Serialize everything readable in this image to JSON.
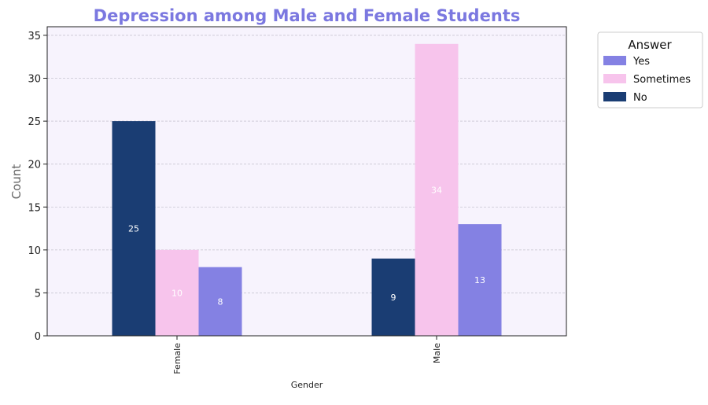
{
  "chart_data": {
    "type": "bar",
    "title": "Depression among Male and Female Students",
    "xlabel": "Gender",
    "ylabel": "Count",
    "categories": [
      "Female",
      "Male"
    ],
    "series": [
      {
        "name": "No",
        "values": [
          25,
          9
        ],
        "color": "#1a3d73"
      },
      {
        "name": "Sometimes",
        "values": [
          10,
          34
        ],
        "color": "#f7c4ec"
      },
      {
        "name": "Yes",
        "values": [
          8,
          13
        ],
        "color": "#8481e3"
      }
    ],
    "ylim": [
      0,
      36
    ],
    "yticks": [
      0,
      5,
      10,
      15,
      20,
      25,
      30,
      35
    ],
    "grid": "horizontal dashed",
    "legend": {
      "title": "Answer",
      "placement": "outside top-right",
      "order": [
        "Yes",
        "Sometimes",
        "No"
      ]
    },
    "colors": {
      "title": "#7b78e0",
      "plot_background": "#f7f3fd",
      "axis_label": "#666666"
    }
  }
}
